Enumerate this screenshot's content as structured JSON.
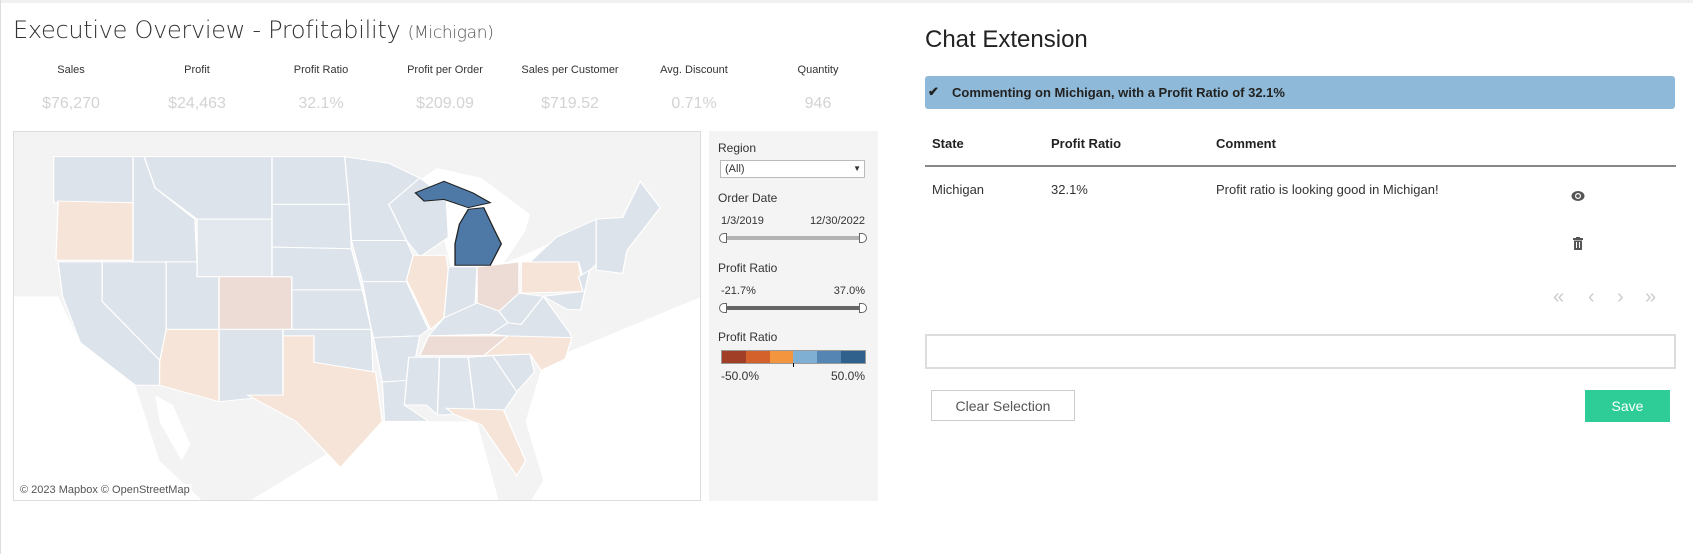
{
  "dashboard": {
    "title": "Executive Overview - Profitability",
    "subtitle": "(Michigan)",
    "kpis": [
      {
        "label": "Sales",
        "value": "$76,270"
      },
      {
        "label": "Profit",
        "value": "$24,463"
      },
      {
        "label": "Profit Ratio",
        "value": "32.1%"
      },
      {
        "label": "Profit per Order",
        "value": "$209.09"
      },
      {
        "label": "Sales per Customer",
        "value": "$719.52"
      },
      {
        "label": "Avg. Discount",
        "value": "0.71%"
      },
      {
        "label": "Quantity",
        "value": "946"
      }
    ],
    "map": {
      "attribution": "© 2023 Mapbox © OpenStreetMap",
      "selected_state": "Michigan",
      "colors": {
        "selected": "#4e79a7",
        "neutral": "#dde3ea",
        "light": "#e3e8ee",
        "negative_light": "#f5e4d7",
        "negative_mid": "#eddcd5"
      }
    },
    "filters": {
      "region": {
        "label": "Region",
        "value": "(All)"
      },
      "order_date": {
        "label": "Order Date",
        "min": "1/3/2019",
        "max": "12/30/2022"
      },
      "profit_ratio_filter": {
        "label": "Profit Ratio",
        "min": "-21.7%",
        "max": "37.0%"
      },
      "profit_ratio_legend": {
        "label": "Profit Ratio",
        "min": "-50.0%",
        "max": "50.0%",
        "colors": [
          "#a03e27",
          "#d4602b",
          "#f3943f",
          "#7fb0d4",
          "#5585b2",
          "#30608c"
        ]
      }
    }
  },
  "chat": {
    "title": "Chat Extension",
    "banner": "Commenting on Michigan, with a Profit Ratio of 32.1%",
    "columns": [
      "State",
      "Profit Ratio",
      "Comment"
    ],
    "rows": [
      {
        "state": "Michigan",
        "profit_ratio": "32.1%",
        "comment": "Profit ratio is looking good in Michigan!"
      }
    ],
    "input_value": "",
    "clear_label": "Clear Selection",
    "save_label": "Save",
    "save_color": "#2ecc96",
    "banner_color": "#8fb9d8"
  }
}
